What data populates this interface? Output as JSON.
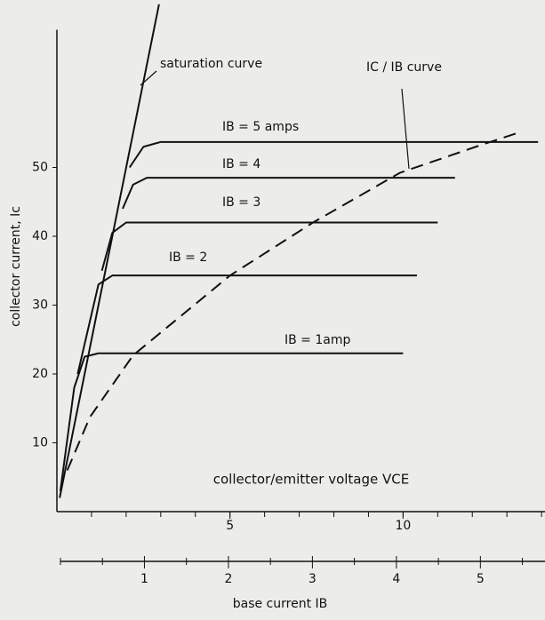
{
  "chart_data": {
    "type": "line",
    "ylabel": "collector current, Ic",
    "xlabel": "collector/emitter voltage VCE",
    "x2label": "base current IB",
    "xlim": [
      0,
      14.1
    ],
    "ylim": [
      0,
      70
    ],
    "xticks": [
      5,
      10
    ],
    "xminorticks": [
      1,
      2,
      3,
      4,
      5,
      6,
      7,
      8,
      9,
      10,
      11,
      12,
      13,
      14
    ],
    "yticks": [
      10,
      20,
      30,
      40,
      50
    ],
    "x2lim": [
      0,
      5.6
    ],
    "x2ticks": [
      1,
      2,
      3,
      4,
      5
    ],
    "x2minorticks": [
      0,
      0.5,
      1.5,
      2.5,
      3.5,
      4.5,
      5.5
    ],
    "series": [
      {
        "name": "saturation curve",
        "color": "#111111",
        "dash": false,
        "x": [
          0.08,
          2.95
        ],
        "values": [
          2,
          73.7
        ]
      },
      {
        "name": "IB = 1amp",
        "color": "#111111",
        "dash": false,
        "x": [
          0.1,
          0.5,
          0.8,
          1.2,
          10
        ],
        "values": [
          3,
          18,
          22.5,
          23,
          23
        ]
      },
      {
        "name": "IB = 2",
        "color": "#111111",
        "dash": false,
        "x": [
          0.6,
          1.2,
          1.6,
          10.4
        ],
        "values": [
          20,
          33,
          34.3,
          34.3
        ]
      },
      {
        "name": "IB = 3",
        "color": "#111111",
        "dash": false,
        "x": [
          1.3,
          1.6,
          2,
          11
        ],
        "values": [
          35,
          40.5,
          42,
          42
        ]
      },
      {
        "name": "IB = 4",
        "color": "#111111",
        "dash": false,
        "x": [
          1.9,
          2.2,
          2.6,
          11.5
        ],
        "values": [
          44,
          47.5,
          48.5,
          48.5
        ]
      },
      {
        "name": "IB = 5 amps",
        "color": "#111111",
        "dash": false,
        "x": [
          2.1,
          2.5,
          3,
          13.9
        ],
        "values": [
          50,
          53,
          53.7,
          53.7
        ]
      },
      {
        "name": "IC / IB curve",
        "color": "#111111",
        "dash": true,
        "x": [
          0.3,
          0.95,
          2.2,
          5,
          7.4,
          9.9,
          12.1,
          13.3
        ],
        "values": [
          6,
          13.7,
          22.7,
          34.3,
          42,
          49.2,
          53,
          55
        ]
      }
    ]
  }
}
